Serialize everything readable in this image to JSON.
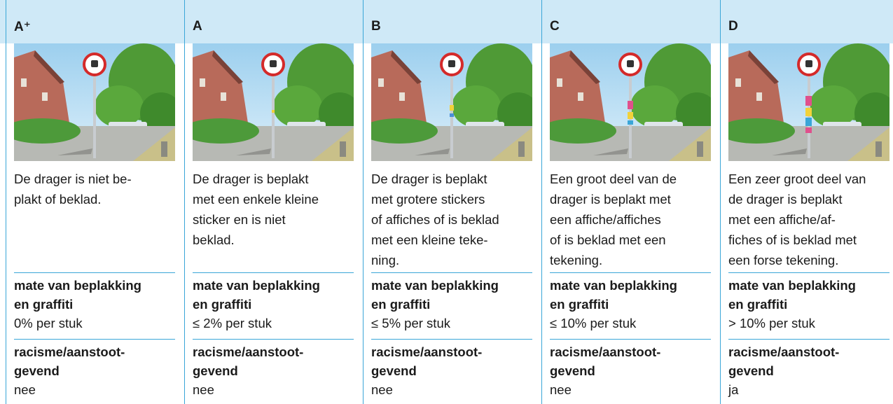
{
  "columns": [
    {
      "grade": "A⁺",
      "description": [
        "De drager is niet be-",
        "plakt of beklad."
      ],
      "criteria": [
        {
          "label": [
            "mate van beplakking",
            "en graffiti"
          ],
          "value": "0% per stuk"
        },
        {
          "label": [
            "racisme/aanstoot-",
            "gevend"
          ],
          "value": "nee"
        }
      ]
    },
    {
      "grade": "A",
      "description": [
        "De drager is beplakt",
        "met een enkele kleine",
        "sticker en is niet",
        "beklad."
      ],
      "criteria": [
        {
          "label": [
            "mate van beplakking",
            "en graffiti"
          ],
          "value": "≤ 2% per stuk"
        },
        {
          "label": [
            "racisme/aanstoot-",
            "gevend"
          ],
          "value": "nee"
        }
      ]
    },
    {
      "grade": "B",
      "description": [
        "De drager is beplakt",
        "met grotere stickers",
        "of affiches of is beklad",
        "met een kleine teke-",
        "ning."
      ],
      "criteria": [
        {
          "label": [
            "mate van beplakking",
            "en graffiti"
          ],
          "value": "≤ 5% per stuk"
        },
        {
          "label": [
            "racisme/aanstoot-",
            "gevend"
          ],
          "value": "nee"
        }
      ]
    },
    {
      "grade": "C",
      "description": [
        "Een groot deel van de",
        "drager is beplakt met",
        "een affiche/affiches",
        "of is beklad met een",
        "tekening."
      ],
      "criteria": [
        {
          "label": [
            "mate van beplakking",
            "en graffiti"
          ],
          "value": "≤ 10% per stuk"
        },
        {
          "label": [
            "racisme/aanstoot-",
            "gevend"
          ],
          "value": "nee"
        }
      ]
    },
    {
      "grade": "D",
      "description": [
        "Een zeer groot deel van",
        "de drager is beplakt",
        "met een affiche/af-",
        "fiches of is beklad met",
        "een forse tekening."
      ],
      "criteria": [
        {
          "label": [
            "mate van beplakking",
            "en graffiti"
          ],
          "value": "> 10% per stuk"
        },
        {
          "label": [
            "racisme/aanstoot-",
            "gevend"
          ],
          "value": "ja"
        }
      ]
    }
  ]
}
